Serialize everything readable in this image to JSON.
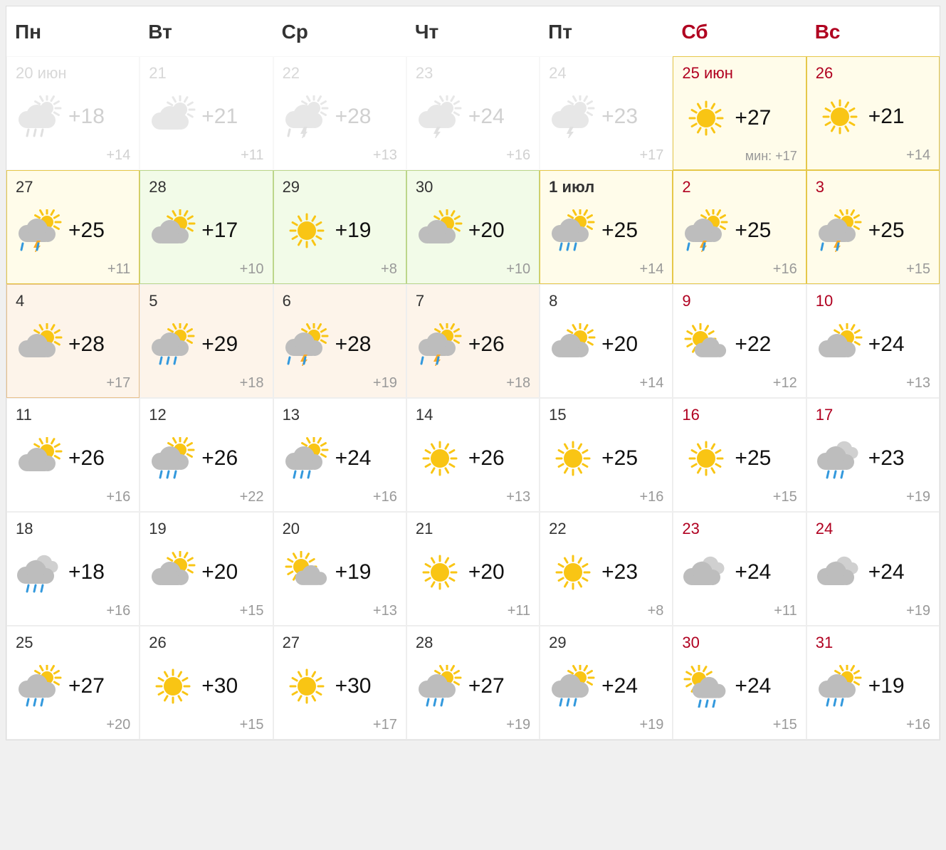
{
  "colors": {
    "weekend_text": "#b00020",
    "text": "#333333",
    "muted": "#999999",
    "sun": "#f9c514",
    "cloud": "#bdbdbd",
    "cloud_light": "#d0d0d0",
    "rain": "#3399dd",
    "bolt": "#f9a825",
    "bg_yellow": "#fffcea",
    "bg_green": "#f2fbe8",
    "bg_orange": "#fdf4ea",
    "border_yellow": "#e6c84a",
    "border_green": "#bcd68a",
    "border_orange": "#e8c08a"
  },
  "headers": [
    "Пн",
    "Вт",
    "Ср",
    "Чт",
    "Пт",
    "Сб",
    "Вс"
  ],
  "weekend_cols": [
    5,
    6
  ],
  "min_prefix": "мин: ",
  "days": [
    {
      "date": "20 июн",
      "hi": "+18",
      "lo": "+14",
      "icon": "cloud-sun-rain",
      "past": true,
      "bg": "plain"
    },
    {
      "date": "21",
      "hi": "+21",
      "lo": "+11",
      "icon": "cloud-sun",
      "past": true,
      "bg": "plain"
    },
    {
      "date": "22",
      "hi": "+28",
      "lo": "+13",
      "icon": "cloud-sun-storm",
      "past": true,
      "bg": "plain"
    },
    {
      "date": "23",
      "hi": "+24",
      "lo": "+16",
      "icon": "cloud-sun-bolt",
      "past": true,
      "bg": "plain"
    },
    {
      "date": "24",
      "hi": "+23",
      "lo": "+17",
      "icon": "cloud-sun-bolt",
      "past": true,
      "bg": "plain"
    },
    {
      "date": "25 июн",
      "hi": "+27",
      "lo": "+17",
      "icon": "sun",
      "bg": "yellow",
      "weekend": true,
      "show_min": true
    },
    {
      "date": "26",
      "hi": "+21",
      "lo": "+14",
      "icon": "sun",
      "bg": "yellow",
      "weekend": true
    },
    {
      "date": "27",
      "hi": "+25",
      "lo": "+11",
      "icon": "cloud-sun-storm",
      "bg": "yellow"
    },
    {
      "date": "28",
      "hi": "+17",
      "lo": "+10",
      "icon": "cloud-sun",
      "bg": "green"
    },
    {
      "date": "29",
      "hi": "+19",
      "lo": "+8",
      "icon": "sun",
      "bg": "green"
    },
    {
      "date": "30",
      "hi": "+20",
      "lo": "+10",
      "icon": "cloud-sun",
      "bg": "green"
    },
    {
      "date": "1 июл",
      "hi": "+25",
      "lo": "+14",
      "icon": "cloud-sun-rain",
      "bg": "yellow",
      "bold": true
    },
    {
      "date": "2",
      "hi": "+25",
      "lo": "+16",
      "icon": "cloud-sun-storm",
      "bg": "yellow",
      "weekend": true
    },
    {
      "date": "3",
      "hi": "+25",
      "lo": "+15",
      "icon": "cloud-sun-storm",
      "bg": "yellow",
      "weekend": true
    },
    {
      "date": "4",
      "hi": "+28",
      "lo": "+17",
      "icon": "cloud-sun",
      "bg": "orange"
    },
    {
      "date": "5",
      "hi": "+29",
      "lo": "+18",
      "icon": "cloud-sun-rain",
      "bg": "orange2"
    },
    {
      "date": "6",
      "hi": "+28",
      "lo": "+19",
      "icon": "cloud-sun-storm",
      "bg": "orange2"
    },
    {
      "date": "7",
      "hi": "+26",
      "lo": "+18",
      "icon": "cloud-sun-storm",
      "bg": "orange2"
    },
    {
      "date": "8",
      "hi": "+20",
      "lo": "+14",
      "icon": "cloud-sun",
      "bg": "plain"
    },
    {
      "date": "9",
      "hi": "+22",
      "lo": "+12",
      "icon": "sun-cloud",
      "bg": "plain",
      "weekend": true
    },
    {
      "date": "10",
      "hi": "+24",
      "lo": "+13",
      "icon": "cloud-sun",
      "bg": "plain",
      "weekend": true
    },
    {
      "date": "11",
      "hi": "+26",
      "lo": "+16",
      "icon": "cloud-sun",
      "bg": "plain"
    },
    {
      "date": "12",
      "hi": "+26",
      "lo": "+22",
      "icon": "cloud-sun-rain",
      "bg": "plain"
    },
    {
      "date": "13",
      "hi": "+24",
      "lo": "+16",
      "icon": "cloud-sun-rain",
      "bg": "plain"
    },
    {
      "date": "14",
      "hi": "+26",
      "lo": "+13",
      "icon": "sun",
      "bg": "plain"
    },
    {
      "date": "15",
      "hi": "+25",
      "lo": "+16",
      "icon": "sun",
      "bg": "plain"
    },
    {
      "date": "16",
      "hi": "+25",
      "lo": "+15",
      "icon": "sun",
      "bg": "plain",
      "weekend": true
    },
    {
      "date": "17",
      "hi": "+23",
      "lo": "+19",
      "icon": "clouds-rain",
      "bg": "plain",
      "weekend": true
    },
    {
      "date": "18",
      "hi": "+18",
      "lo": "+16",
      "icon": "clouds-rain",
      "bg": "plain"
    },
    {
      "date": "19",
      "hi": "+20",
      "lo": "+15",
      "icon": "cloud-sun",
      "bg": "plain"
    },
    {
      "date": "20",
      "hi": "+19",
      "lo": "+13",
      "icon": "sun-cloud",
      "bg": "plain"
    },
    {
      "date": "21",
      "hi": "+20",
      "lo": "+11",
      "icon": "sun",
      "bg": "plain"
    },
    {
      "date": "22",
      "hi": "+23",
      "lo": "+8",
      "icon": "sun",
      "bg": "plain"
    },
    {
      "date": "23",
      "hi": "+24",
      "lo": "+11",
      "icon": "clouds",
      "bg": "plain",
      "weekend": true
    },
    {
      "date": "24",
      "hi": "+24",
      "lo": "+19",
      "icon": "clouds",
      "bg": "plain",
      "weekend": true
    },
    {
      "date": "25",
      "hi": "+27",
      "lo": "+20",
      "icon": "cloud-sun-rain",
      "bg": "plain"
    },
    {
      "date": "26",
      "hi": "+30",
      "lo": "+15",
      "icon": "sun",
      "bg": "plain"
    },
    {
      "date": "27",
      "hi": "+30",
      "lo": "+17",
      "icon": "sun",
      "bg": "plain"
    },
    {
      "date": "28",
      "hi": "+27",
      "lo": "+19",
      "icon": "cloud-sun-rain",
      "bg": "plain"
    },
    {
      "date": "29",
      "hi": "+24",
      "lo": "+19",
      "icon": "cloud-sun-rain",
      "bg": "plain"
    },
    {
      "date": "30",
      "hi": "+24",
      "lo": "+15",
      "icon": "sun-cloud-rain",
      "bg": "plain",
      "weekend": true
    },
    {
      "date": "31",
      "hi": "+19",
      "lo": "+16",
      "icon": "cloud-sun-rain",
      "bg": "plain",
      "weekend": true
    }
  ]
}
